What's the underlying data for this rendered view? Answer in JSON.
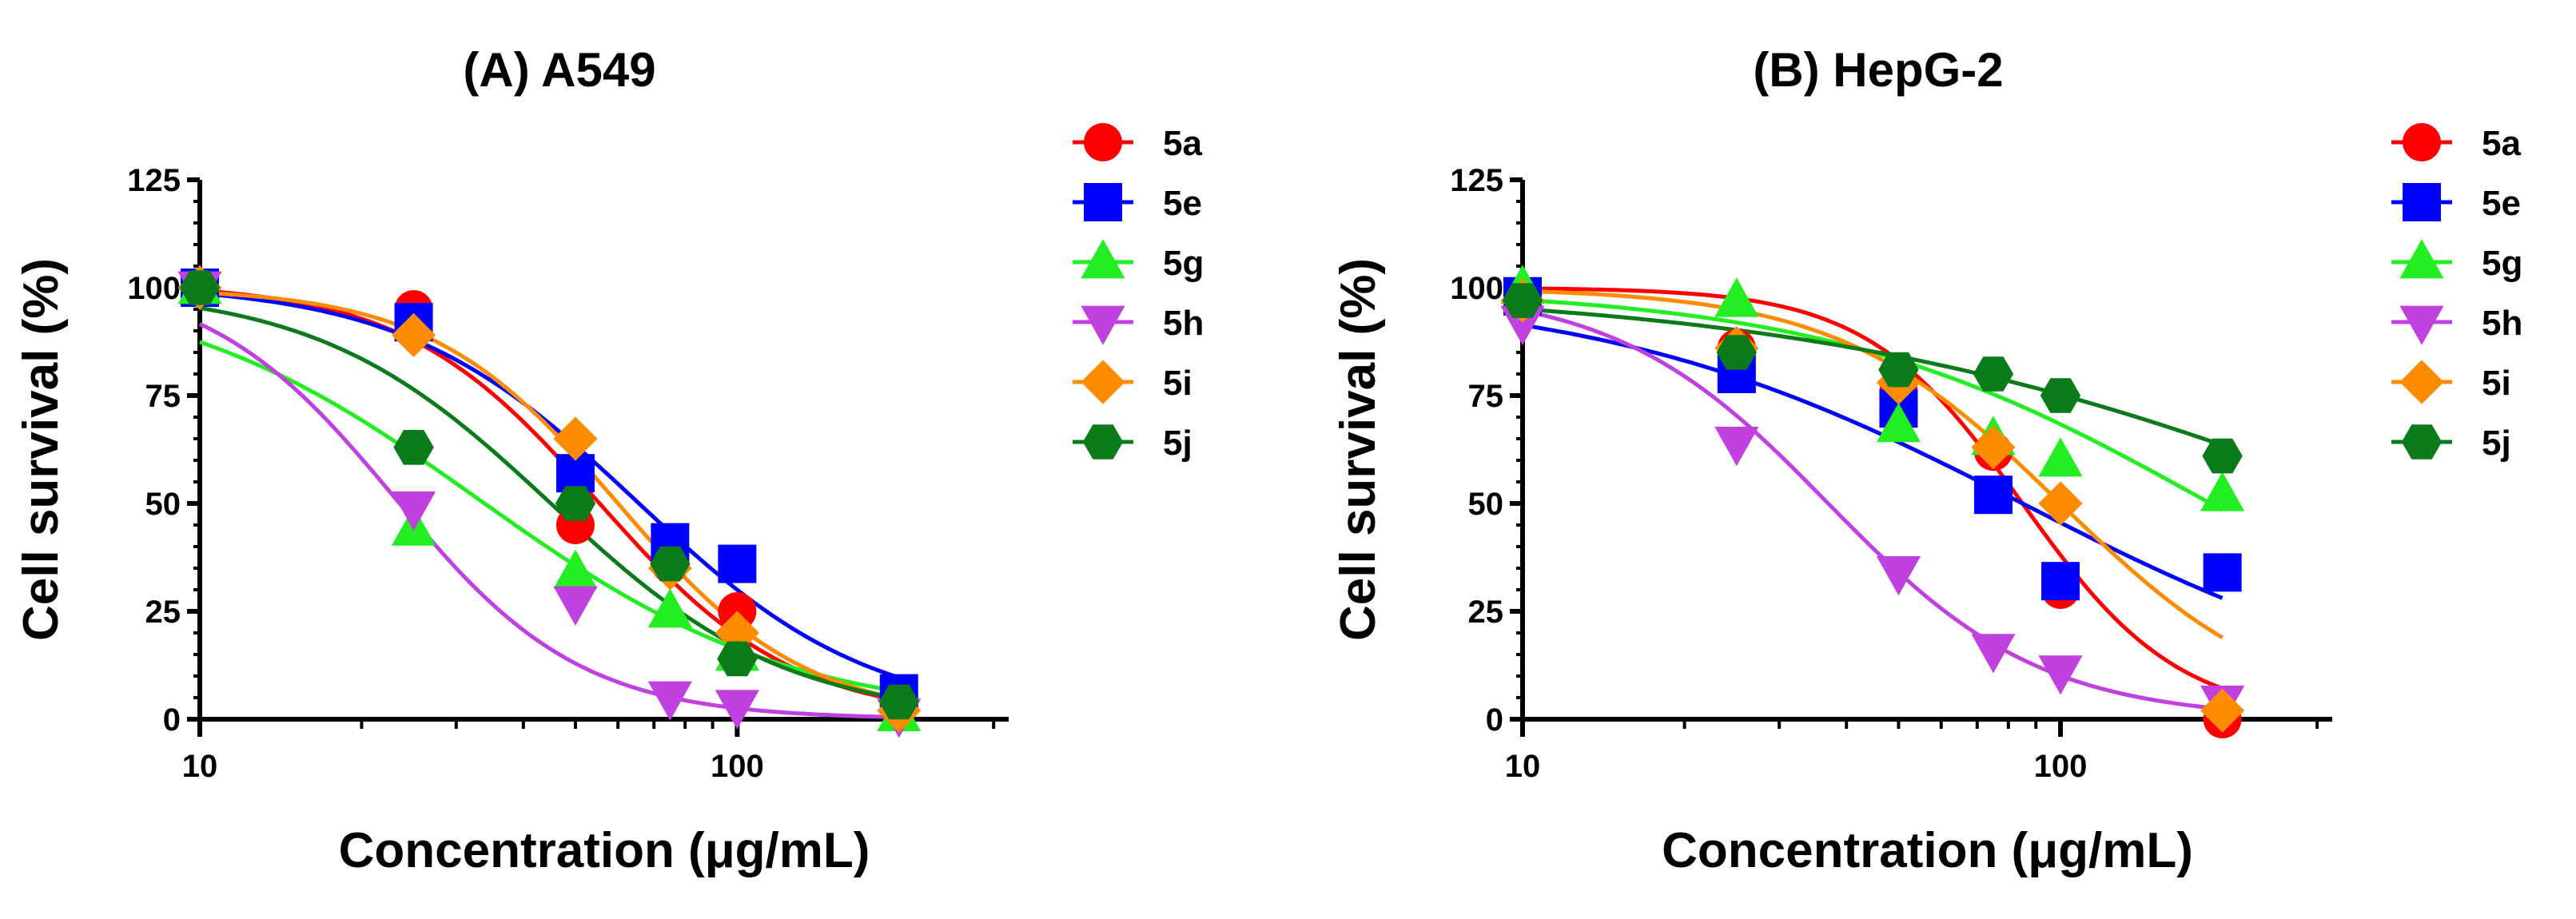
{
  "chart_data": [
    {
      "type": "scatter",
      "title": "(A) A549",
      "xlabel": "Concentration (μg/mL)",
      "ylabel": "Cell survival (%)",
      "xscale": "log",
      "xlim": [
        10,
        320
      ],
      "ylim": [
        0,
        125
      ],
      "xticks": [
        10,
        100
      ],
      "xtick_labels": [
        "10",
        "100"
      ],
      "yticks": [
        0,
        25,
        50,
        75,
        100,
        125
      ],
      "ytick_labels": [
        "0",
        "25",
        "50",
        "75",
        "100",
        "125"
      ],
      "legend_position": "right",
      "series": [
        {
          "name": "5a",
          "color": "#ff0000",
          "marker": "circle",
          "x": [
            10,
            25,
            50,
            75,
            100,
            200
          ],
          "y": [
            100,
            95,
            45,
            36,
            25,
            3
          ],
          "curve": {
            "top": 101,
            "bottom": 0,
            "ec50": 55,
            "hill": 2.4
          }
        },
        {
          "name": "5e",
          "color": "#0000ff",
          "marker": "square",
          "x": [
            10,
            25,
            50,
            75,
            100,
            200
          ],
          "y": [
            100,
            92,
            57,
            41,
            36,
            6
          ],
          "curve": {
            "top": 101,
            "bottom": 0,
            "ec50": 65,
            "hill": 2.0
          }
        },
        {
          "name": "5g",
          "color": "#22ee22",
          "marker": "triangle-up",
          "x": [
            10,
            25,
            50,
            75,
            100,
            200
          ],
          "y": [
            100,
            44,
            34,
            25,
            15,
            1
          ],
          "curve": {
            "top": 102,
            "bottom": 0,
            "ec50": 33,
            "hill": 1.5
          }
        },
        {
          "name": "5h",
          "color": "#c040e0",
          "marker": "triangle-down",
          "x": [
            10,
            25,
            50,
            75,
            100,
            200
          ],
          "y": [
            100,
            49,
            27,
            5,
            3,
            1
          ],
          "curve": {
            "top": 103,
            "bottom": 0,
            "ec50": 23,
            "hill": 2.5
          }
        },
        {
          "name": "5i",
          "color": "#ff8c00",
          "marker": "diamond",
          "x": [
            10,
            25,
            50,
            75,
            100,
            200
          ],
          "y": [
            100,
            89,
            65,
            35,
            20,
            2
          ],
          "curve": {
            "top": 100,
            "bottom": 0,
            "ec50": 60,
            "hill": 2.5
          }
        },
        {
          "name": "5j",
          "color": "#0a7a1a",
          "marker": "hexagon",
          "x": [
            10,
            25,
            50,
            75,
            100,
            200
          ],
          "y": [
            100,
            63,
            50,
            36,
            14,
            4
          ],
          "curve": {
            "top": 100,
            "bottom": 0,
            "ec50": 45,
            "hill": 2.0
          }
        }
      ]
    },
    {
      "type": "scatter",
      "title": "(B) HepG-2",
      "xlabel": "Concentration (μg/mL)",
      "ylabel": "Cell survival (%)",
      "xscale": "log",
      "xlim": [
        10,
        320
      ],
      "ylim": [
        0,
        125
      ],
      "xticks": [
        10,
        100
      ],
      "xtick_labels": [
        "10",
        "100"
      ],
      "yticks": [
        0,
        25,
        50,
        75,
        100,
        125
      ],
      "ytick_labels": [
        "0",
        "25",
        "50",
        "75",
        "100",
        "125"
      ],
      "legend_position": "right",
      "series": [
        {
          "name": "5a",
          "color": "#ff0000",
          "marker": "circle",
          "x": [
            10,
            25,
            50,
            75,
            100,
            200
          ],
          "y": [
            97,
            86,
            76,
            62,
            30,
            0
          ],
          "curve": {
            "top": 100,
            "bottom": 0,
            "ec50": 85,
            "hill": 3.0
          }
        },
        {
          "name": "5e",
          "color": "#0000ff",
          "marker": "square",
          "x": [
            10,
            25,
            50,
            75,
            100,
            200
          ],
          "y": [
            98,
            80,
            72,
            52,
            32,
            34
          ],
          "curve": {
            "top": 100,
            "bottom": 0,
            "ec50": 85,
            "hill": 1.1
          }
        },
        {
          "name": "5g",
          "color": "#22ee22",
          "marker": "triangle-up",
          "x": [
            10,
            25,
            50,
            75,
            100,
            200
          ],
          "y": [
            100,
            97,
            68,
            65,
            60,
            52
          ],
          "curve": {
            "top": 100,
            "bottom": 0,
            "ec50": 190,
            "hill": 1.2
          }
        },
        {
          "name": "5h",
          "color": "#c040e0",
          "marker": "triangle-down",
          "x": [
            10,
            25,
            50,
            75,
            100,
            200
          ],
          "y": [
            92,
            64,
            34,
            16,
            11,
            4
          ],
          "curve": {
            "top": 100,
            "bottom": 0,
            "ec50": 37,
            "hill": 2.2
          }
        },
        {
          "name": "5i",
          "color": "#ff8c00",
          "marker": "diamond",
          "x": [
            10,
            25,
            50,
            75,
            100,
            200
          ],
          "y": [
            97,
            86,
            78,
            63,
            50,
            2
          ],
          "curve": {
            "top": 100,
            "bottom": 0,
            "ec50": 100,
            "hill": 2.1
          }
        },
        {
          "name": "5j",
          "color": "#0a7a1a",
          "marker": "hexagon",
          "x": [
            10,
            25,
            50,
            75,
            100,
            200
          ],
          "y": [
            97,
            85,
            81,
            80,
            75,
            61
          ],
          "curve": {
            "top": 100,
            "bottom": 0,
            "ec50": 400,
            "hill": 0.8
          }
        }
      ]
    }
  ]
}
